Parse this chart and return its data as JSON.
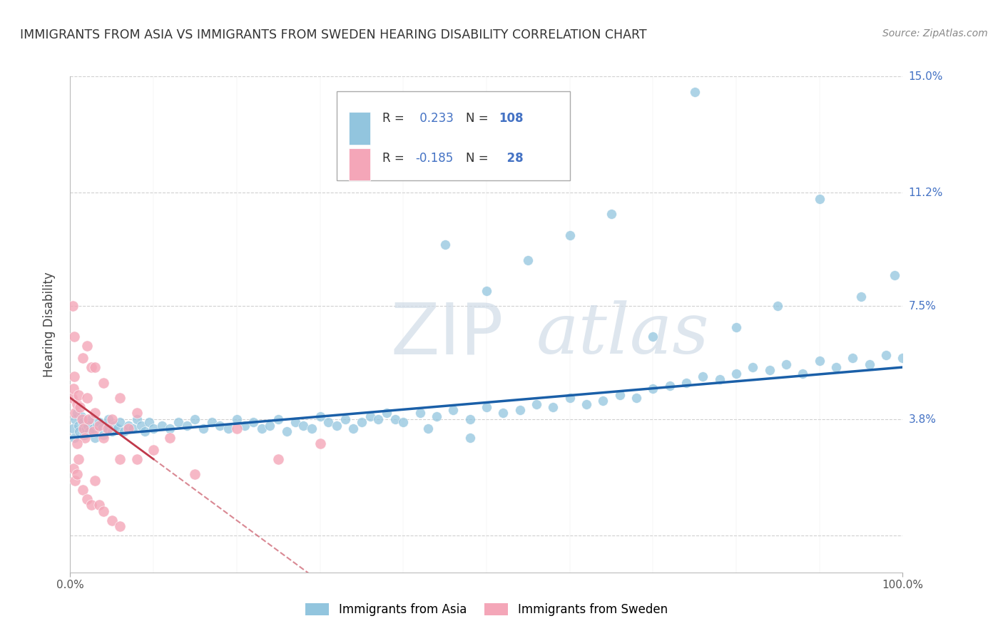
{
  "title": "IMMIGRANTS FROM ASIA VS IMMIGRANTS FROM SWEDEN HEARING DISABILITY CORRELATION CHART",
  "source": "Source: ZipAtlas.com",
  "ylabel": "Hearing Disability",
  "legend_label_asia": "Immigrants from Asia",
  "legend_label_sweden": "Immigrants from Sweden",
  "R_asia": 0.233,
  "N_asia": 108,
  "R_sweden": -0.185,
  "N_sweden": 28,
  "color_asia": "#92c5de",
  "color_sweden": "#f4a6b8",
  "color_asia_line": "#1a5fa8",
  "color_sweden_line": "#c0394b",
  "xlim": [
    0,
    100
  ],
  "ylim": [
    -1.2,
    15.0
  ],
  "ytick_positions": [
    0,
    3.8,
    7.5,
    11.2,
    15.0
  ],
  "ytick_labels_right": [
    "",
    "3.8%",
    "7.5%",
    "11.2%",
    "15.0%"
  ],
  "background_color": "#ffffff",
  "grid_color": "#d0d0d0",
  "title_color": "#333333",
  "color_N": "#4472c4",
  "color_R_value": "#4472c4",
  "asia_scatter_x": [
    0.3,
    0.5,
    0.6,
    0.8,
    1.0,
    1.1,
    1.3,
    1.5,
    1.7,
    1.9,
    2.1,
    2.3,
    2.5,
    2.8,
    3.0,
    3.2,
    3.5,
    3.8,
    4.0,
    4.3,
    4.6,
    5.0,
    5.3,
    5.7,
    6.0,
    6.5,
    7.0,
    7.5,
    8.0,
    8.5,
    9.0,
    9.5,
    10.0,
    11.0,
    12.0,
    13.0,
    14.0,
    15.0,
    16.0,
    17.0,
    18.0,
    19.0,
    20.0,
    21.0,
    22.0,
    23.0,
    24.0,
    25.0,
    26.0,
    27.0,
    28.0,
    29.0,
    30.0,
    31.0,
    32.0,
    33.0,
    34.0,
    35.0,
    36.0,
    37.0,
    38.0,
    39.0,
    40.0,
    42.0,
    44.0,
    46.0,
    48.0,
    50.0,
    52.0,
    54.0,
    56.0,
    58.0,
    60.0,
    62.0,
    64.0,
    66.0,
    68.0,
    70.0,
    72.0,
    74.0,
    76.0,
    78.0,
    80.0,
    82.0,
    84.0,
    86.0,
    88.0,
    90.0,
    92.0,
    94.0,
    96.0,
    98.0,
    100.0,
    45.0,
    50.0,
    55.0,
    60.0,
    65.0,
    70.0,
    75.0,
    80.0,
    85.0,
    90.0,
    95.0,
    99.0,
    43.0,
    48.0
  ],
  "asia_scatter_y": [
    3.5,
    3.2,
    3.8,
    4.0,
    3.6,
    3.4,
    3.9,
    3.7,
    3.3,
    3.5,
    3.6,
    3.4,
    3.8,
    3.5,
    3.2,
    3.6,
    3.7,
    3.5,
    3.3,
    3.5,
    3.8,
    3.4,
    3.6,
    3.5,
    3.7,
    3.4,
    3.6,
    3.5,
    3.8,
    3.6,
    3.4,
    3.7,
    3.5,
    3.6,
    3.5,
    3.7,
    3.6,
    3.8,
    3.5,
    3.7,
    3.6,
    3.5,
    3.8,
    3.6,
    3.7,
    3.5,
    3.6,
    3.8,
    3.4,
    3.7,
    3.6,
    3.5,
    3.9,
    3.7,
    3.6,
    3.8,
    3.5,
    3.7,
    3.9,
    3.8,
    4.0,
    3.8,
    3.7,
    4.0,
    3.9,
    4.1,
    3.8,
    4.2,
    4.0,
    4.1,
    4.3,
    4.2,
    4.5,
    4.3,
    4.4,
    4.6,
    4.5,
    4.8,
    4.9,
    5.0,
    5.2,
    5.1,
    5.3,
    5.5,
    5.4,
    5.6,
    5.3,
    5.7,
    5.5,
    5.8,
    5.6,
    5.9,
    5.8,
    9.5,
    8.0,
    9.0,
    9.8,
    10.5,
    6.5,
    14.5,
    6.8,
    7.5,
    11.0,
    7.8,
    8.5,
    3.5,
    3.2
  ],
  "sweden_scatter_x": [
    0.2,
    0.4,
    0.5,
    0.6,
    0.8,
    1.0,
    1.2,
    1.4,
    1.6,
    1.8,
    2.0,
    2.2,
    2.5,
    2.8,
    3.0,
    3.5,
    4.0,
    4.5,
    5.0,
    6.0,
    7.0,
    8.0,
    10.0,
    12.0,
    15.0,
    20.0,
    25.0,
    30.0
  ],
  "sweden_scatter_y": [
    4.5,
    4.8,
    5.2,
    4.0,
    4.3,
    4.6,
    4.2,
    3.8,
    3.5,
    3.2,
    4.5,
    3.8,
    5.5,
    3.4,
    4.0,
    3.6,
    3.2,
    3.5,
    3.8,
    2.5,
    3.5,
    2.5,
    2.8,
    3.2,
    2.0,
    3.5,
    2.5,
    3.0
  ],
  "sweden_extra_x": [
    0.3,
    0.5,
    1.5,
    2.0,
    3.0,
    4.0,
    6.0,
    8.0,
    0.8
  ],
  "sweden_extra_y": [
    7.5,
    6.5,
    5.8,
    6.2,
    5.5,
    5.0,
    4.5,
    4.0,
    3.0
  ],
  "sweden_low_x": [
    0.4,
    0.6,
    0.8,
    1.0,
    1.5,
    2.0,
    2.5,
    3.0,
    3.5,
    4.0,
    5.0,
    6.0
  ],
  "sweden_low_y": [
    2.2,
    1.8,
    2.0,
    2.5,
    1.5,
    1.2,
    1.0,
    1.8,
    1.0,
    0.8,
    0.5,
    0.3
  ],
  "watermark_zip": "ZIP",
  "watermark_atlas": "atlas"
}
